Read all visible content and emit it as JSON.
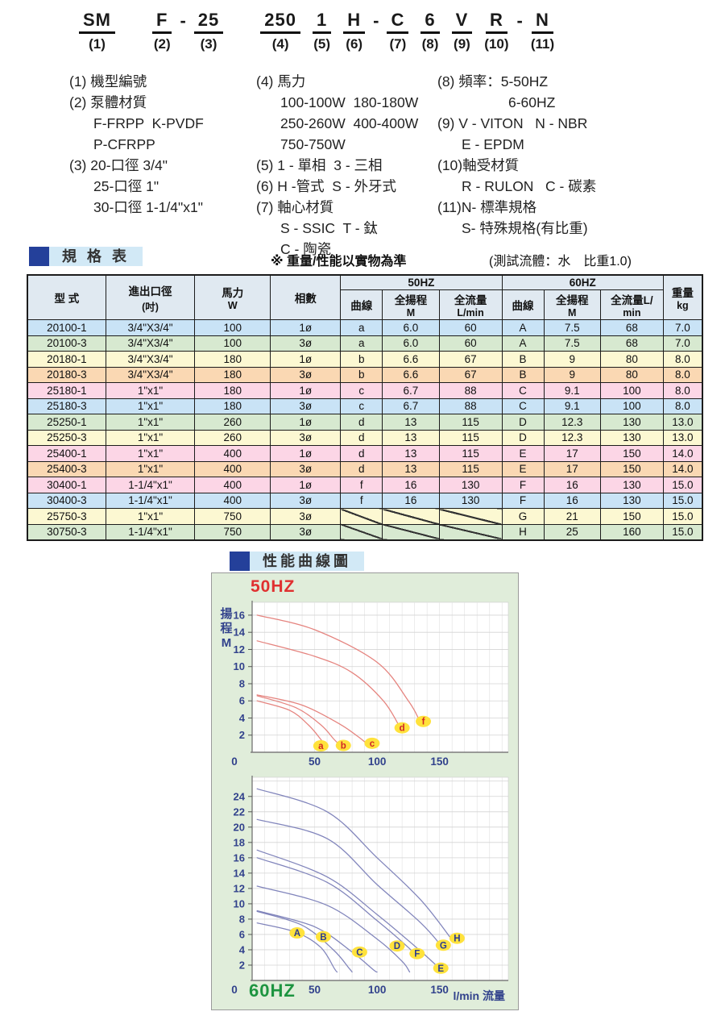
{
  "model_code": {
    "parts": [
      {
        "code": "SM",
        "num": "(1)",
        "dash_after": false,
        "gap_after": true
      },
      {
        "code": "F",
        "num": "(2)",
        "dash_after": true,
        "gap_after": false
      },
      {
        "code": "25",
        "num": "(3)",
        "dash_after": false,
        "gap_after": true
      },
      {
        "code": "250",
        "num": "(4)",
        "dash_after": false,
        "gap_after": false
      },
      {
        "code": "1",
        "num": "(5)",
        "dash_after": false,
        "gap_after": false
      },
      {
        "code": "H",
        "num": "(6)",
        "dash_after": true,
        "gap_after": false
      },
      {
        "code": "C",
        "num": "(7)",
        "dash_after": false,
        "gap_after": false
      },
      {
        "code": "6",
        "num": "(8)",
        "dash_after": false,
        "gap_after": false
      },
      {
        "code": "V",
        "num": "(9)",
        "dash_after": false,
        "gap_after": false
      },
      {
        "code": "R",
        "num": "(10)",
        "dash_after": true,
        "gap_after": false
      },
      {
        "code": "N",
        "num": "(11)",
        "dash_after": false,
        "gap_after": false
      }
    ]
  },
  "legend": {
    "col1": [
      {
        "t": "(1) 機型編號",
        "i": 0
      },
      {
        "t": "(2) 泵體材質",
        "i": 0
      },
      {
        "t": "F-FRPP  K-PVDF",
        "i": 1
      },
      {
        "t": "P-CFRPP",
        "i": 1
      },
      {
        "t": "(3) 20-口徑 3/4\"",
        "i": 0
      },
      {
        "t": "25-口徑 1\"",
        "i": 1
      },
      {
        "t": "30-口徑 1-1/4\"x1\"",
        "i": 1
      }
    ],
    "col2": [
      {
        "t": "(4) 馬力",
        "i": 0
      },
      {
        "t": "100-100W  180-180W",
        "i": 1
      },
      {
        "t": "250-260W  400-400W",
        "i": 1
      },
      {
        "t": "750-750W",
        "i": 1
      },
      {
        "t": "(5) 1 - 單相  3 - 三相",
        "i": 0
      },
      {
        "t": "(6) H -管式  S - 外牙式",
        "i": 0
      },
      {
        "t": "(7) 軸心材質",
        "i": 0
      },
      {
        "t": "S - SSIC  T - 鈦",
        "i": 1
      },
      {
        "t": "C - 陶瓷",
        "i": 1
      }
    ],
    "col3": [
      {
        "t": "(8) 頻率：5-50HZ",
        "i": 0
      },
      {
        "t": "6-60HZ",
        "i": 2
      },
      {
        "t": "(9) V - VITON   N - NBR",
        "i": 0
      },
      {
        "t": "E - EPDM",
        "i": 1
      },
      {
        "t": "(10)軸受材質",
        "i": 0
      },
      {
        "t": "R - RULON   C - 碳素",
        "i": 1
      },
      {
        "t": "(11)N- 標準規格",
        "i": 0
      },
      {
        "t": "S- 特殊規格(有比重)",
        "i": 1
      }
    ]
  },
  "spec_table": {
    "section_title": "規 格 表",
    "note1": "※ 重量/性能以實物為準",
    "note2": "(測試流體：水　比重1.0)",
    "headers": {
      "model": "型  式",
      "ports": "進出口徑",
      "ports_unit": "(吋)",
      "power": "馬力",
      "power_unit": "W",
      "phase": "相數",
      "hz50": "50HZ",
      "hz60": "60HZ",
      "curve": "曲線",
      "head": "全揚程",
      "head_unit": "M",
      "flow50": "全流量",
      "flow50_unit": "L/min",
      "flow60": "全流量L/",
      "flow60_unit": "min",
      "weight": "重量",
      "weight_unit": "kg"
    },
    "row_colors": {
      "blue": "#c9e3f6",
      "green": "#d7e9d0",
      "yellow": "#fcf8d2",
      "orange": "#fad8b3",
      "pink": "#fcd6e6"
    },
    "rows": [
      {
        "model": "20100-1",
        "ports": "3/4\"X3/4\"",
        "power": "100",
        "phase": "1ø",
        "c50": "a",
        "h50": "6.0",
        "f50": "60",
        "c60": "A",
        "h60": "7.5",
        "f60": "68",
        "wt": "7.0",
        "bg": "blue",
        "slash": false
      },
      {
        "model": "20100-3",
        "ports": "3/4\"X3/4\"",
        "power": "100",
        "phase": "3ø",
        "c50": "a",
        "h50": "6.0",
        "f50": "60",
        "c60": "A",
        "h60": "7.5",
        "f60": "68",
        "wt": "7.0",
        "bg": "green",
        "slash": false
      },
      {
        "model": "20180-1",
        "ports": "3/4\"X3/4\"",
        "power": "180",
        "phase": "1ø",
        "c50": "b",
        "h50": "6.6",
        "f50": "67",
        "c60": "B",
        "h60": "9",
        "f60": "80",
        "wt": "8.0",
        "bg": "yellow",
        "slash": false
      },
      {
        "model": "20180-3",
        "ports": "3/4\"X3/4\"",
        "power": "180",
        "phase": "3ø",
        "c50": "b",
        "h50": "6.6",
        "f50": "67",
        "c60": "B",
        "h60": "9",
        "f60": "80",
        "wt": "8.0",
        "bg": "orange",
        "slash": false
      },
      {
        "model": "25180-1",
        "ports": "1\"x1\"",
        "power": "180",
        "phase": "1ø",
        "c50": "c",
        "h50": "6.7",
        "f50": "88",
        "c60": "C",
        "h60": "9.1",
        "f60": "100",
        "wt": "8.0",
        "bg": "pink",
        "slash": false
      },
      {
        "model": "25180-3",
        "ports": "1\"x1\"",
        "power": "180",
        "phase": "3ø",
        "c50": "c",
        "h50": "6.7",
        "f50": "88",
        "c60": "C",
        "h60": "9.1",
        "f60": "100",
        "wt": "8.0",
        "bg": "blue",
        "slash": false
      },
      {
        "model": "25250-1",
        "ports": "1\"x1\"",
        "power": "260",
        "phase": "1ø",
        "c50": "d",
        "h50": "13",
        "f50": "115",
        "c60": "D",
        "h60": "12.3",
        "f60": "130",
        "wt": "13.0",
        "bg": "green",
        "slash": false
      },
      {
        "model": "25250-3",
        "ports": "1\"x1\"",
        "power": "260",
        "phase": "3ø",
        "c50": "d",
        "h50": "13",
        "f50": "115",
        "c60": "D",
        "h60": "12.3",
        "f60": "130",
        "wt": "13.0",
        "bg": "yellow",
        "slash": false
      },
      {
        "model": "25400-1",
        "ports": "1\"x1\"",
        "power": "400",
        "phase": "1ø",
        "c50": "d",
        "h50": "13",
        "f50": "115",
        "c60": "E",
        "h60": "17",
        "f60": "150",
        "wt": "14.0",
        "bg": "pink",
        "slash": false
      },
      {
        "model": "25400-3",
        "ports": "1\"x1\"",
        "power": "400",
        "phase": "3ø",
        "c50": "d",
        "h50": "13",
        "f50": "115",
        "c60": "E",
        "h60": "17",
        "f60": "150",
        "wt": "14.0",
        "bg": "orange",
        "slash": false
      },
      {
        "model": "30400-1",
        "ports": "1-1/4\"x1\"",
        "power": "400",
        "phase": "1ø",
        "c50": "f",
        "h50": "16",
        "f50": "130",
        "c60": "F",
        "h60": "16",
        "f60": "130",
        "wt": "15.0",
        "bg": "pink",
        "slash": false
      },
      {
        "model": "30400-3",
        "ports": "1-1/4\"x1\"",
        "power": "400",
        "phase": "3ø",
        "c50": "f",
        "h50": "16",
        "f50": "130",
        "c60": "F",
        "h60": "16",
        "f60": "130",
        "wt": "15.0",
        "bg": "blue",
        "slash": false
      },
      {
        "model": "25750-3",
        "ports": "1\"x1\"",
        "power": "750",
        "phase": "3ø",
        "c50": null,
        "h50": null,
        "f50": null,
        "c60": "G",
        "h60": "21",
        "f60": "150",
        "wt": "15.0",
        "bg": "yellow",
        "slash": true
      },
      {
        "model": "30750-3",
        "ports": "1-1/4\"x1\"",
        "power": "750",
        "phase": "3ø",
        "c50": null,
        "h50": null,
        "f50": null,
        "c60": "H",
        "h60": "25",
        "f60": "160",
        "wt": "15.0",
        "bg": "green",
        "slash": true
      }
    ]
  },
  "performance": {
    "section_title": "性能曲線圖"
  },
  "chart_data": [
    {
      "type": "line",
      "title": "50HZ",
      "title_color": "#e03030",
      "ylabel": "揚程M",
      "xlabel": "",
      "xlim": [
        0,
        205
      ],
      "ylim": [
        0,
        17.5
      ],
      "xticks": [
        50,
        100,
        150
      ],
      "yticks": [
        2,
        4,
        6,
        8,
        10,
        12,
        14,
        16
      ],
      "grid": true,
      "curve_color": "#e5837e",
      "label_fill": "#ffe23c",
      "label_text_color": "#d02525",
      "series": [
        {
          "name": "a",
          "points": [
            [
              4,
              6.0
            ],
            [
              30,
              4.9
            ],
            [
              45,
              3.2
            ],
            [
              55,
              1.5
            ],
            [
              58,
              0.9
            ]
          ],
          "label_at": [
            55,
            0.75
          ]
        },
        {
          "name": "b",
          "points": [
            [
              4,
              6.6
            ],
            [
              35,
              5.2
            ],
            [
              55,
              3.2
            ],
            [
              65,
              1.6
            ],
            [
              69,
              1.0
            ]
          ],
          "label_at": [
            73,
            0.8
          ]
        },
        {
          "name": "c",
          "points": [
            [
              4,
              6.7
            ],
            [
              40,
              5.5
            ],
            [
              70,
              3.3
            ],
            [
              85,
              1.8
            ],
            [
              91,
              1.1
            ]
          ],
          "label_at": [
            96,
            1.05
          ]
        },
        {
          "name": "d",
          "points": [
            [
              4,
              13
            ],
            [
              50,
              11.2
            ],
            [
              80,
              9.3
            ],
            [
              105,
              6.0
            ],
            [
              118,
              3.0
            ]
          ],
          "label_at": [
            120,
            2.85
          ]
        },
        {
          "name": "f",
          "points": [
            [
              4,
              16
            ],
            [
              50,
              14.3
            ],
            [
              100,
              10.5
            ],
            [
              125,
              6.0
            ],
            [
              134,
              3.7
            ]
          ],
          "label_at": [
            137,
            3.6
          ]
        }
      ]
    },
    {
      "type": "line",
      "title": "60HZ",
      "title_color": "#1d9440",
      "ylabel": "",
      "xlabel": "l/min 流量",
      "xlim": [
        0,
        205
      ],
      "ylim": [
        0,
        26.5
      ],
      "xticks": [
        50,
        100,
        150
      ],
      "yticks": [
        2,
        4,
        6,
        8,
        10,
        12,
        14,
        16,
        18,
        20,
        22,
        24
      ],
      "grid": true,
      "curve_color": "#8084bb",
      "label_fill": "#ffe23c",
      "label_text_color": "#2c3c8e",
      "series": [
        {
          "name": "A",
          "points": [
            [
              4,
              7.5
            ],
            [
              35,
              6.3
            ],
            [
              55,
              4.3
            ],
            [
              66,
              1.5
            ],
            [
              68,
              1.1
            ]
          ],
          "label_at": [
            36,
            6.2
          ]
        },
        {
          "name": "B",
          "points": [
            [
              4,
              9
            ],
            [
              40,
              7.2
            ],
            [
              65,
              4.0
            ],
            [
              78,
              1.5
            ],
            [
              80,
              1.1
            ]
          ],
          "label_at": [
            57,
            5.7
          ]
        },
        {
          "name": "C",
          "points": [
            [
              4,
              9.1
            ],
            [
              50,
              7.0
            ],
            [
              80,
              3.7
            ],
            [
              97,
              1.4
            ],
            [
              100,
              1.1
            ]
          ],
          "label_at": [
            86,
            3.7
          ]
        },
        {
          "name": "D",
          "points": [
            [
              4,
              12.3
            ],
            [
              60,
              9.8
            ],
            [
              100,
              5.4
            ],
            [
              120,
              2.5
            ],
            [
              126,
              1.1
            ]
          ],
          "label_at": [
            116,
            4.5
          ]
        },
        {
          "name": "E",
          "points": [
            [
              4,
              17
            ],
            [
              60,
              13.5
            ],
            [
              100,
              8.6
            ],
            [
              135,
              3.8
            ],
            [
              151,
              1.4
            ]
          ],
          "label_at": [
            151,
            1.6
          ]
        },
        {
          "name": "F",
          "points": [
            [
              4,
              16
            ],
            [
              60,
              12.8
            ],
            [
              100,
              7.8
            ],
            [
              125,
              4.3
            ],
            [
              131,
              3.2
            ]
          ],
          "label_at": [
            132,
            3.5
          ]
        },
        {
          "name": "G",
          "points": [
            [
              4,
              21
            ],
            [
              60,
              18.5
            ],
            [
              100,
              12.5
            ],
            [
              135,
              7.5
            ],
            [
              152,
              4.4
            ]
          ],
          "label_at": [
            153,
            4.6
          ]
        },
        {
          "name": "H",
          "points": [
            [
              4,
              25
            ],
            [
              60,
              22.0
            ],
            [
              100,
              16.0
            ],
            [
              135,
              10.5
            ],
            [
              160,
              5.3
            ]
          ],
          "label_at": [
            164,
            5.5
          ]
        }
      ]
    }
  ]
}
